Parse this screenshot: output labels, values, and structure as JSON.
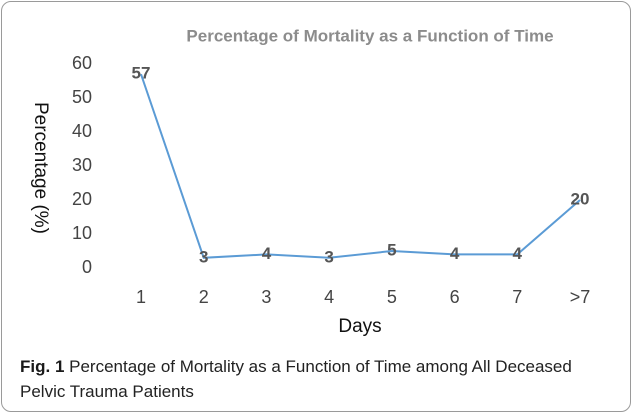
{
  "chart_data": {
    "type": "line",
    "title": "Percentage of Mortality as a Function of Time",
    "x_label": "Days",
    "y_label": "Percentage (%)",
    "categories": [
      "1",
      "2",
      "3",
      "4",
      "5",
      "6",
      "7",
      ">7"
    ],
    "values": [
      57,
      3,
      4,
      3,
      5,
      4,
      4,
      20
    ],
    "color": "#5b9bd5",
    "ylim": [
      0,
      60
    ],
    "yticks": [
      0,
      10,
      20,
      30,
      40,
      50,
      60
    ],
    "grid": false
  },
  "caption": {
    "label": "Fig. 1",
    "text": "Percentage of Mortality as a Function of Time among All Deceased Pelvic Trauma Patients"
  }
}
